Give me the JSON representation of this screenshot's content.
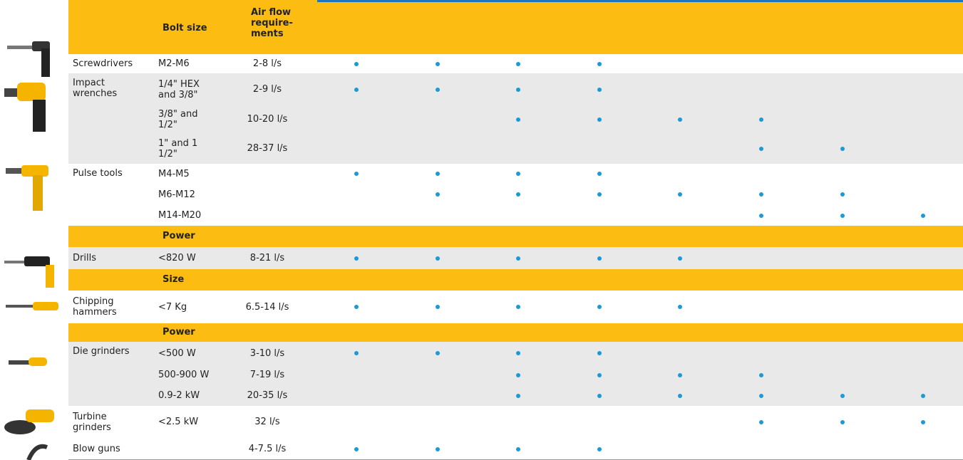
{
  "header": {
    "bolt_size": "Bolt size",
    "air_flow": [
      "Air flow",
      "require-",
      "ments"
    ]
  },
  "dot_color": "#1a9ad6",
  "groups": [
    {
      "tool": "Screwdrivers",
      "shaded": false,
      "rows": [
        {
          "bolt": "M2-M6",
          "flow": "2-8 l/s",
          "dots": [
            true,
            true,
            true,
            true,
            false,
            false,
            false,
            false
          ]
        }
      ]
    },
    {
      "tool": "Impact wrenches",
      "shaded": true,
      "rows": [
        {
          "bolt": "1/4\" HEX and 3/8\"",
          "flow": "2-9 l/s",
          "dots": [
            true,
            true,
            true,
            true,
            false,
            false,
            false,
            false
          ]
        },
        {
          "bolt": "3/8\" and 1/2\"",
          "flow": "10-20 l/s",
          "dots": [
            false,
            false,
            true,
            true,
            true,
            true,
            false,
            false
          ]
        },
        {
          "bolt": "1\" and 1 1/2\"",
          "flow": "28-37 l/s",
          "dots": [
            false,
            false,
            false,
            false,
            false,
            true,
            true,
            false
          ]
        }
      ]
    },
    {
      "tool": "Pulse tools",
      "shaded": false,
      "rows": [
        {
          "bolt": "M4-M5",
          "dots": [
            true,
            true,
            true,
            true,
            false,
            false,
            false,
            false
          ]
        },
        {
          "bolt": "M6-M12",
          "dots": [
            false,
            true,
            true,
            true,
            true,
            true,
            true,
            false
          ]
        },
        {
          "bolt": "M14-M20",
          "dots": [
            false,
            false,
            false,
            false,
            false,
            true,
            true,
            true
          ]
        }
      ]
    },
    {
      "section": "Power"
    },
    {
      "tool": "Drills",
      "shaded": true,
      "rows": [
        {
          "bolt": "<820 W",
          "flow": "8-21 l/s",
          "dots": [
            true,
            true,
            true,
            true,
            true,
            false,
            false,
            false
          ]
        }
      ]
    },
    {
      "section": "Size"
    },
    {
      "tool": "Chipping hammers",
      "shaded": false,
      "rows": [
        {
          "bolt": "<7 Kg",
          "flow": "6.5-14 l/s",
          "dots": [
            true,
            true,
            true,
            true,
            true,
            false,
            false,
            false
          ]
        }
      ]
    },
    {
      "section": "Power"
    },
    {
      "tool": "Die grinders",
      "shaded": true,
      "rows": [
        {
          "bolt": "<500 W",
          "flow": "3-10 l/s",
          "dots": [
            true,
            true,
            true,
            true,
            false,
            false,
            false,
            false
          ]
        },
        {
          "bolt": "500-900 W",
          "flow": "7-19 l/s",
          "dots": [
            false,
            false,
            true,
            true,
            true,
            true,
            false,
            false
          ]
        },
        {
          "bolt": "0.9-2 kW",
          "flow": "20-35 l/s",
          "dots": [
            false,
            false,
            true,
            true,
            true,
            true,
            true,
            true
          ]
        }
      ]
    },
    {
      "tool": "Turbine grinders",
      "shaded": false,
      "rows": [
        {
          "bolt": "<2.5 kW",
          "flow": "32 l/s",
          "dots": [
            false,
            false,
            false,
            false,
            false,
            true,
            true,
            true
          ]
        }
      ]
    },
    {
      "tool": "Blow guns",
      "shaded": false,
      "rows": [
        {
          "flow": "4-7.5 l/s",
          "dots": [
            true,
            true,
            true,
            true,
            false,
            false,
            false,
            false
          ]
        }
      ]
    }
  ]
}
